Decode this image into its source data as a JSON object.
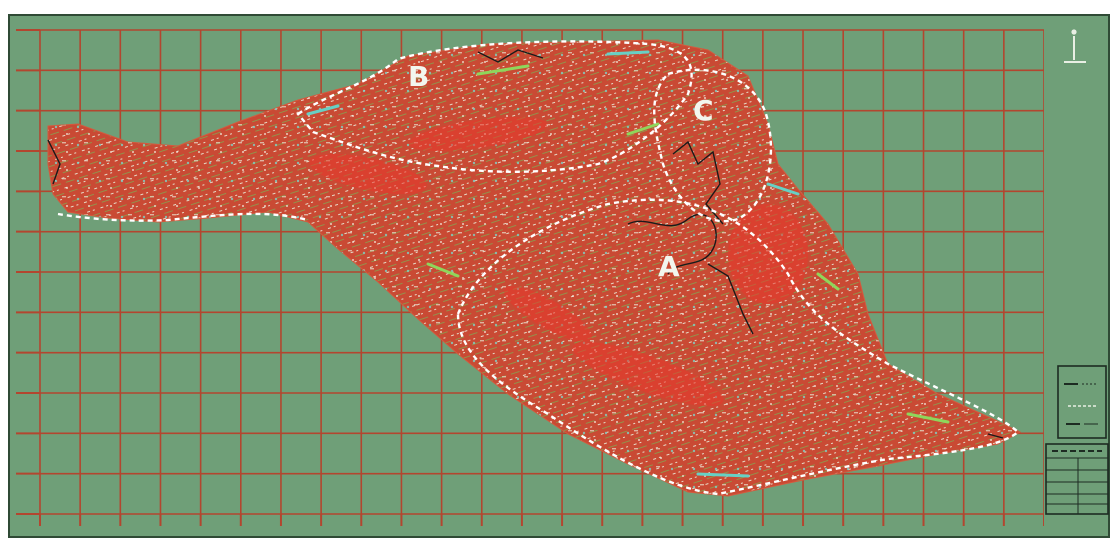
{
  "map": {
    "background_color": "#6f9f78",
    "grid_color": "#b3462f",
    "terrain_color": "#c94a34",
    "boundary_color": "#ffffff",
    "frame_color": "#2f4a35",
    "north_arrow_icon": "north-arrow-icon",
    "zones": [
      {
        "label": "B"
      },
      {
        "label": "C"
      },
      {
        "label": "A"
      }
    ]
  }
}
